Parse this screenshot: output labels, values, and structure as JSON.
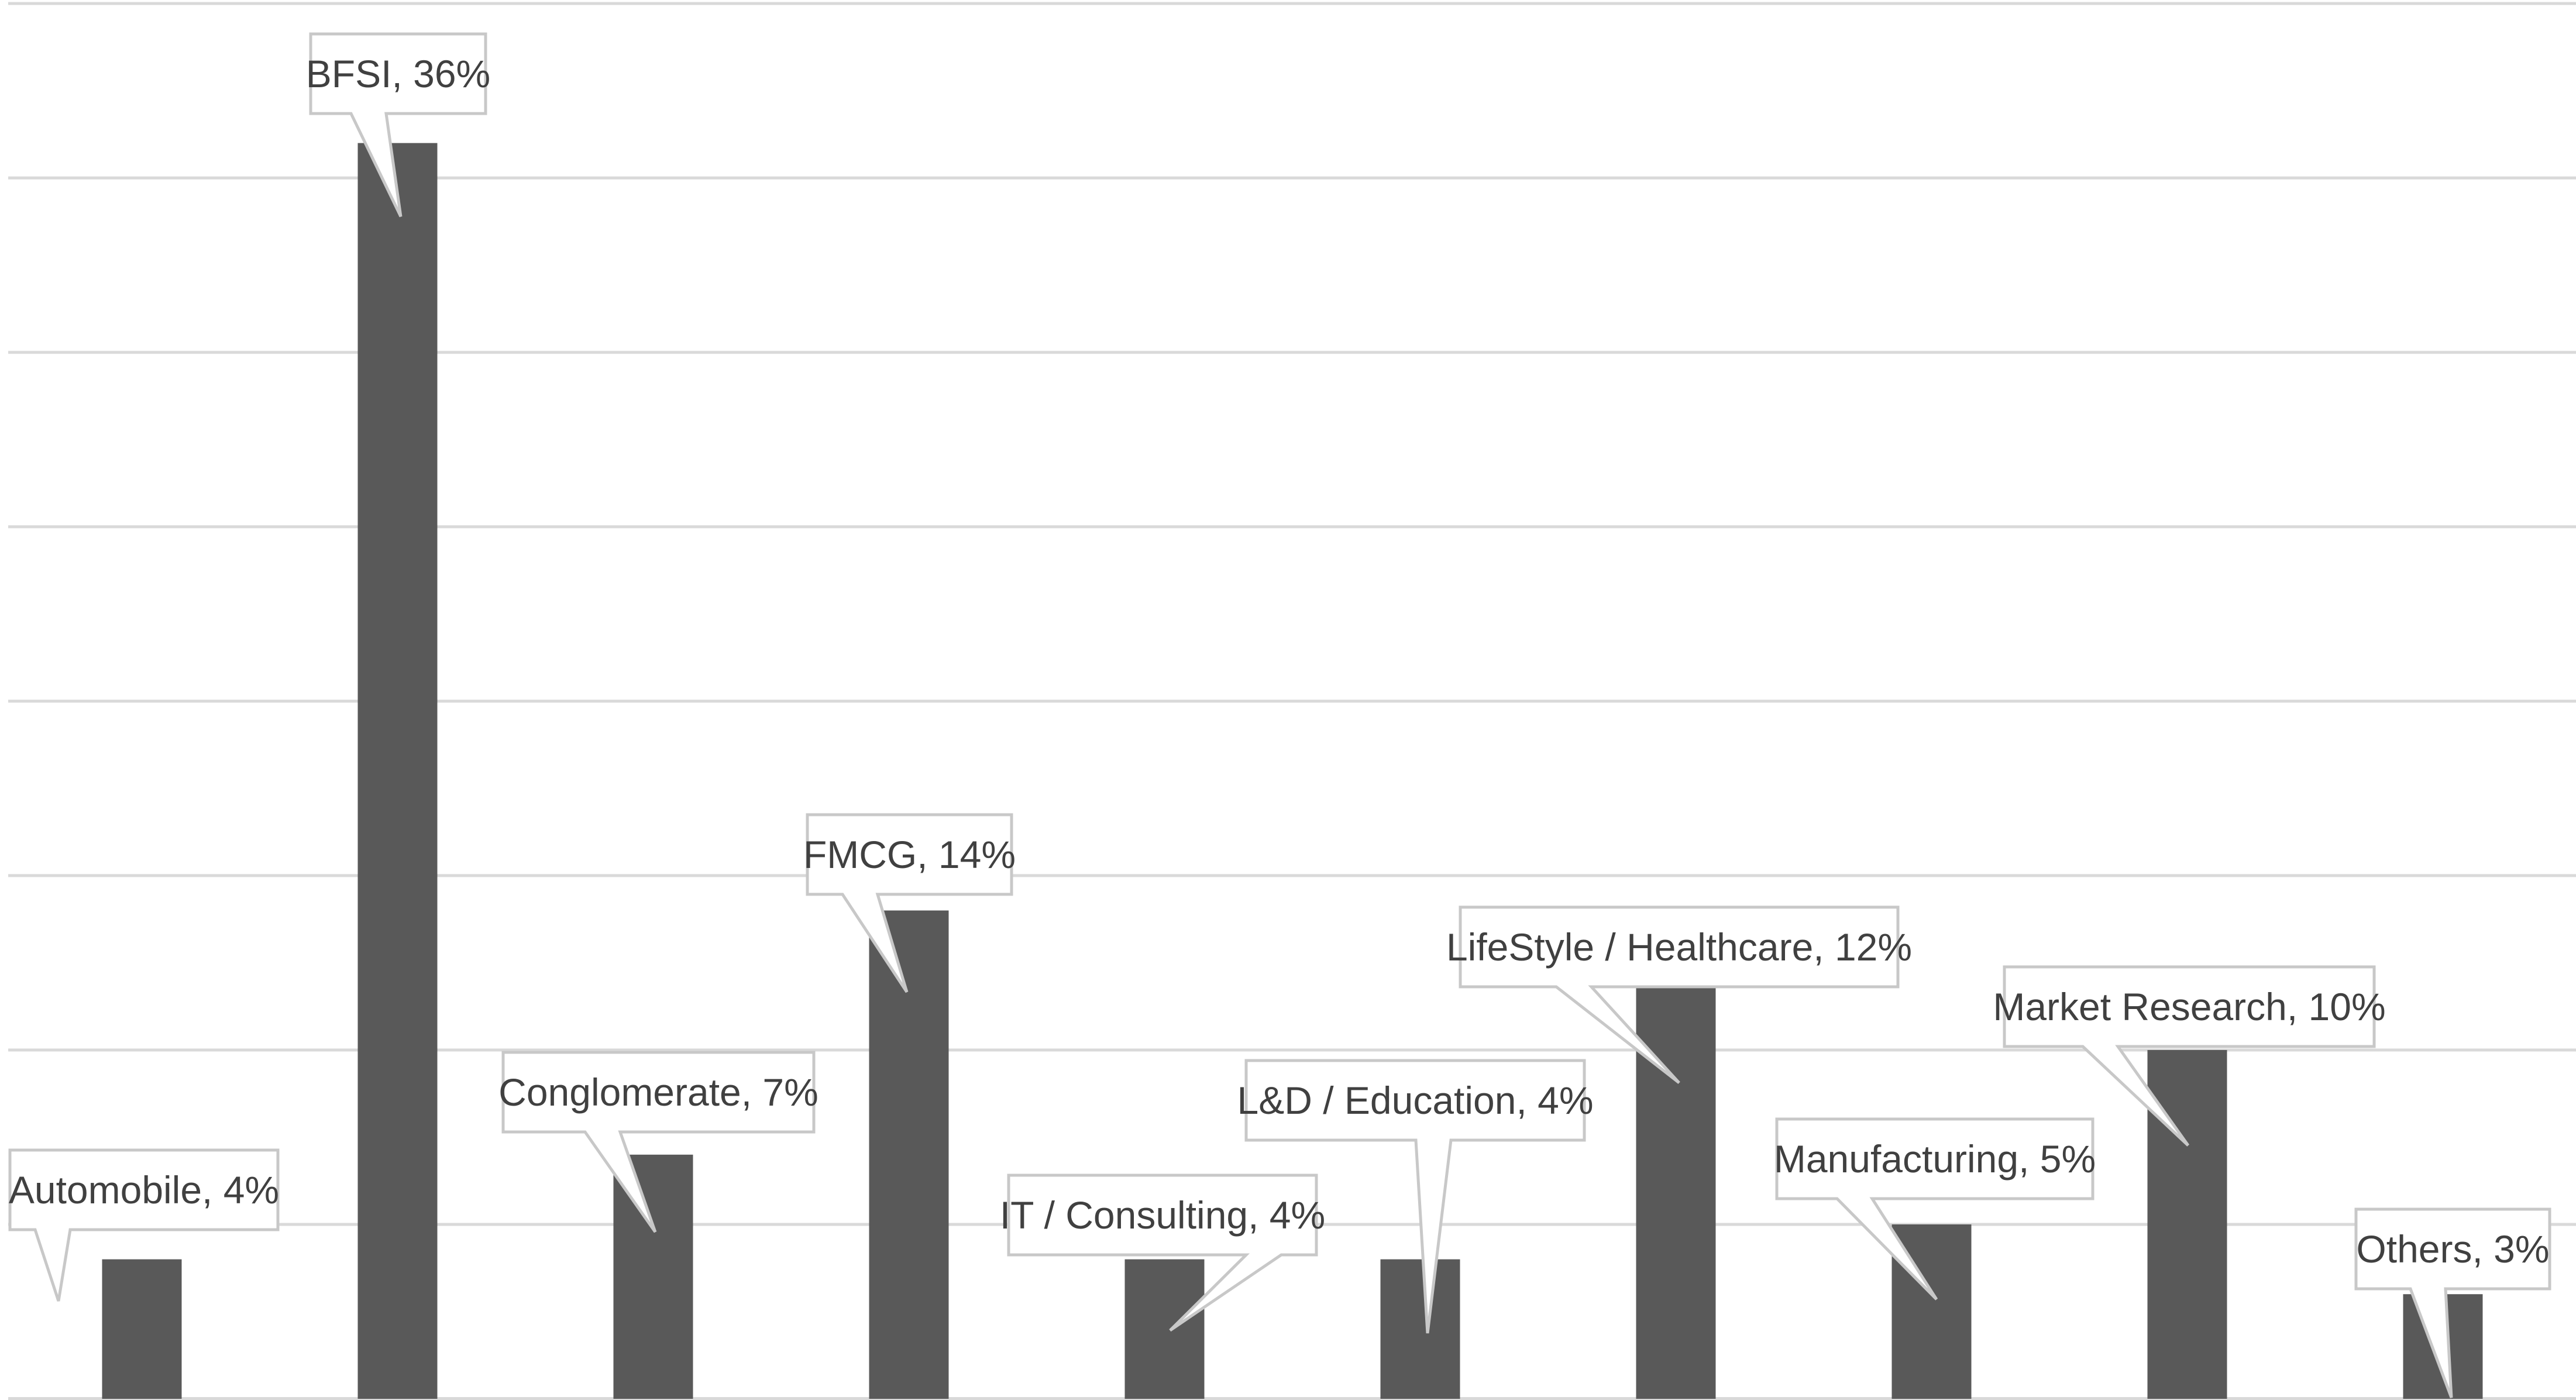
{
  "chart_data": {
    "type": "bar",
    "title": "",
    "xlabel": "",
    "ylabel": "",
    "ylim": [
      0,
      40
    ],
    "grid": true,
    "legend": "none",
    "categories": [
      "Automobile",
      "BFSI",
      "Conglomerate",
      "FMCG",
      "IT / Consulting",
      "L&D / Education",
      "LifeStyle / Healthcare",
      "Manufacturing",
      "Market Research",
      "Others"
    ],
    "values": [
      4,
      36,
      7,
      14,
      4,
      4,
      12,
      5,
      10,
      3
    ],
    "data_labels": [
      "Automobile, 4%",
      "BFSI, 36%",
      "Conglomerate, 7%",
      "FMCG, 14%",
      "IT / Consulting, 4%",
      "L&D / Education, 4%",
      "LifeStyle / Healthcare, 12%",
      "Manufacturing, 5%",
      "Market Research, 10%",
      "Others, 3%"
    ],
    "colors": {
      "bar": "#595959",
      "grid": "#d9d9d9",
      "label_border": "#c8c8c8",
      "label_text": "#404040"
    }
  }
}
